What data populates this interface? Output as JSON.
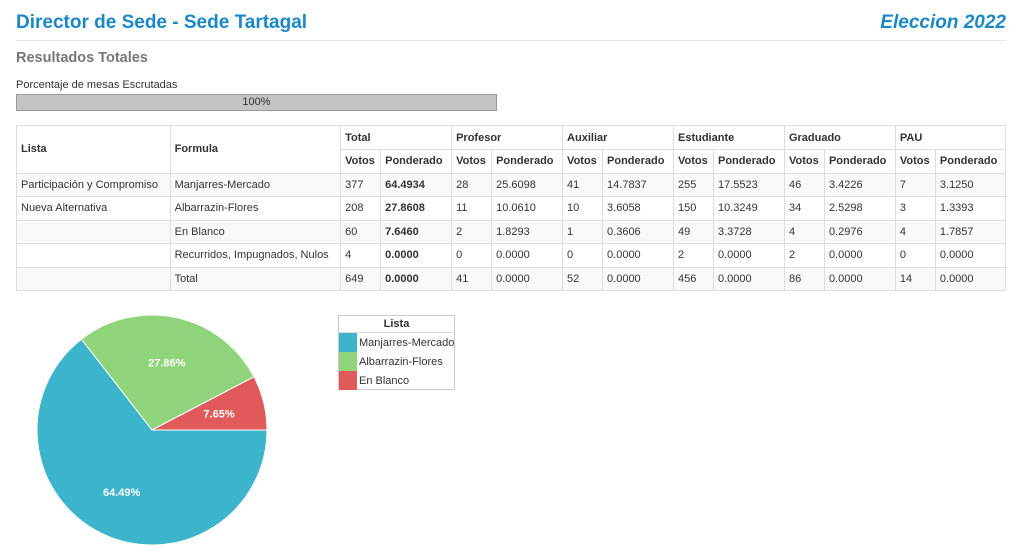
{
  "header": {
    "title": "Director de Sede - Sede Tartagal",
    "election": "Eleccion 2022"
  },
  "subtitle": "Resultados Totales",
  "progress": {
    "label": "Porcentaje de mesas Escrutadas",
    "text": "100%",
    "value": 100
  },
  "table": {
    "group_headers": [
      "Lista",
      "Formula",
      "Total",
      "Profesor",
      "Auxiliar",
      "Estudiante",
      "Graduado",
      "PAU"
    ],
    "sub_headers": [
      "Votos",
      "Ponderado"
    ],
    "rows": [
      {
        "lista": "Participación y Compromiso",
        "formula": "Manjarres-Mercado",
        "cells": [
          "377",
          "64.4934",
          "28",
          "25.6098",
          "41",
          "14.7837",
          "255",
          "17.5523",
          "46",
          "3.4226",
          "7",
          "3.1250"
        ]
      },
      {
        "lista": "Nueva Alternativa",
        "formula": "Albarrazin-Flores",
        "cells": [
          "208",
          "27.8608",
          "11",
          "10.0610",
          "10",
          "3.6058",
          "150",
          "10.3249",
          "34",
          "2.5298",
          "3",
          "1.3393"
        ]
      },
      {
        "lista": "",
        "formula": "En Blanco",
        "cells": [
          "60",
          "7.6460",
          "2",
          "1.8293",
          "1",
          "0.3606",
          "49",
          "3.3728",
          "4",
          "0.2976",
          "4",
          "1.7857"
        ]
      },
      {
        "lista": "",
        "formula": "Recurridos, Impugnados, Nulos",
        "cells": [
          "4",
          "0.0000",
          "0",
          "0.0000",
          "0",
          "0.0000",
          "2",
          "0.0000",
          "2",
          "0.0000",
          "0",
          "0.0000"
        ]
      },
      {
        "lista": "",
        "formula": "Total",
        "cells": [
          "649",
          "0.0000",
          "41",
          "0.0000",
          "52",
          "0.0000",
          "456",
          "0.0000",
          "86",
          "0.0000",
          "14",
          "0.0000"
        ]
      }
    ]
  },
  "chart_data": {
    "type": "pie",
    "categories": [
      "Manjarres-Mercado",
      "Albarrazin-Flores",
      "En Blanco"
    ],
    "values": [
      64.49,
      27.86,
      7.65
    ],
    "labels": [
      "64.49%",
      "27.86%",
      "7.65%"
    ],
    "colors": [
      "#3cb4cc",
      "#8fd47a",
      "#e05a5a"
    ],
    "legend_title": "Lista",
    "legend_position": "right"
  }
}
